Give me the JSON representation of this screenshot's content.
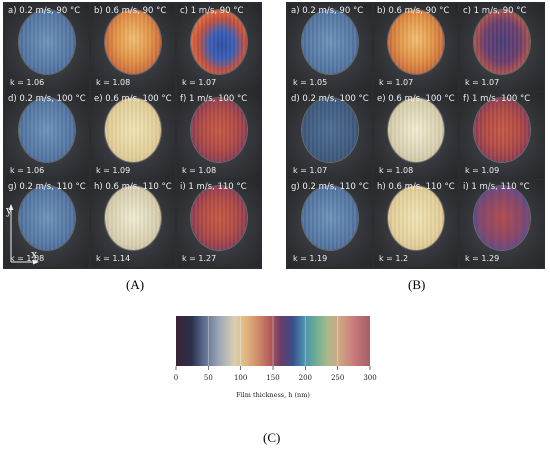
{
  "panels": [
    {
      "id": "A",
      "caption": "(A)",
      "cells": [
        {
          "label": "a)  0.2 m/s,  90 °C",
          "k": "k = 1.06",
          "style": "blue"
        },
        {
          "label": "b)  0.6 m/s,  90 °C",
          "k": "k = 1.08",
          "style": "orange"
        },
        {
          "label": "c)   1 m/s,  90 °C",
          "k": "k = 1.07",
          "style": "ring"
        },
        {
          "label": "d)  0.2 m/s, 100 °C",
          "k": "k = 1.06",
          "style": "blue"
        },
        {
          "label": "e)  0.6 m/s, 100 °C",
          "k": "k = 1.09",
          "style": "cream"
        },
        {
          "label": "f)   1 m/s, 100 °C",
          "k": "k = 1.08",
          "style": "red"
        },
        {
          "label": "g)  0.2 m/s, 110 °C",
          "k": "k = 1.08",
          "style": "blue"
        },
        {
          "label": "h)  0.6 m/s, 110 °C",
          "k": "k = 1.14",
          "style": "pale"
        },
        {
          "label": "i)   1 m/s, 110 °C",
          "k": "k = 1.27",
          "style": "red"
        }
      ],
      "axes": {
        "y": "y",
        "x": "x"
      }
    },
    {
      "id": "B",
      "caption": "(B)",
      "cells": [
        {
          "label": "a)  0.2 m/s,  90 °C",
          "k": "k = 1.05",
          "style": "blue"
        },
        {
          "label": "b)  0.6 m/s,  90 °C",
          "k": "k = 1.07",
          "style": "orange"
        },
        {
          "label": "c)   1 m/s,  90 °C",
          "k": "k = 1.07",
          "style": "purple"
        },
        {
          "label": "d)  0.2 m/s, 100 °C",
          "k": "k = 1.07",
          "style": "dark"
        },
        {
          "label": "e)  0.6 m/s, 100 °C",
          "k": "k = 1.08",
          "style": "pale"
        },
        {
          "label": "f)   1 m/s, 100 °C",
          "k": "k = 1.09",
          "style": "red"
        },
        {
          "label": "g)  0.2 m/s, 110 °C",
          "k": "k = 1.19",
          "style": "blue"
        },
        {
          "label": "h)  0.6 m/s, 110 °C",
          "k": "k = 1.2",
          "style": "cream"
        },
        {
          "label": "i)   1 m/s, 110 °C",
          "k": "k = 1.29",
          "style": "redblue"
        }
      ]
    }
  ],
  "colorbar": {
    "xlabel": "Film thickness, h (nm)",
    "ticks": [
      "0",
      "50",
      "100",
      "150",
      "200",
      "250",
      "300"
    ],
    "caption": "(C)"
  },
  "colors": {
    "panel_bg": "#2b2d30",
    "blue": "#5b7fa6",
    "orange": "#d9823a",
    "red": "#b84a3e",
    "cream": "#e6d9a8",
    "purple": "#5b3f6e"
  }
}
